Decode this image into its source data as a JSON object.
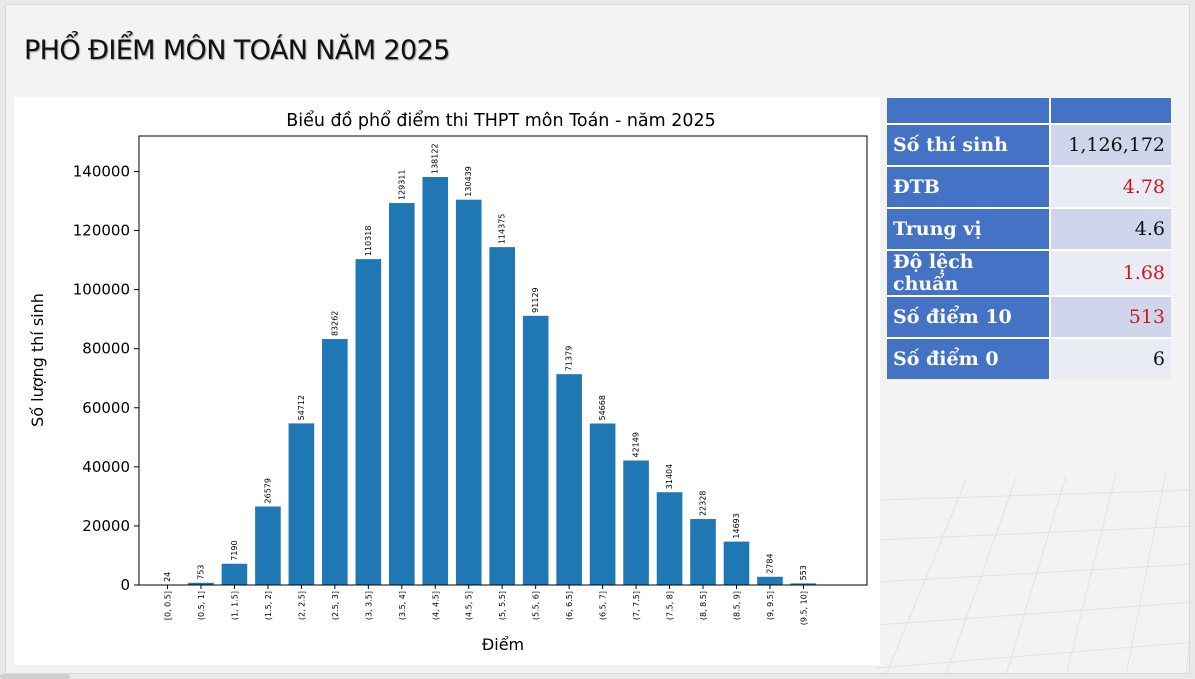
{
  "page": {
    "title": "PHỔ ĐIỂM MÔN TOÁN NĂM 2025"
  },
  "stats": {
    "header": [
      "",
      ""
    ],
    "rows": [
      {
        "label": "Số thí sinh",
        "value": "1,126,172",
        "highlight": false
      },
      {
        "label": "ĐTB",
        "value": "4.78",
        "highlight": true
      },
      {
        "label": "Trung vị",
        "value": "4.6",
        "highlight": false
      },
      {
        "label": "Độ lệch chuẩn",
        "value": "1.68",
        "highlight": true
      },
      {
        "label": "Số điểm 10",
        "value": "513",
        "highlight": true
      },
      {
        "label": "Số điểm 0",
        "value": "6",
        "highlight": false
      }
    ],
    "colors": {
      "header": "#4472c4",
      "highlight_text": "#d01818"
    }
  },
  "chart_data": {
    "type": "bar",
    "title": "Biểu đồ phổ điểm thi THPT môn Toán - năm 2025",
    "xlabel": "Điểm",
    "ylabel": "Số lượng thí sinh",
    "ylim": [
      0,
      152000
    ],
    "yticks": [
      0,
      20000,
      40000,
      60000,
      80000,
      100000,
      120000,
      140000
    ],
    "categories": [
      "[0, 0.5]",
      "(0.5, 1]",
      "(1, 1.5]",
      "(1.5, 2]",
      "(2, 2.5]",
      "(2.5, 3]",
      "(3, 3.5]",
      "(3.5, 4]",
      "(4, 4.5]",
      "(4.5, 5]",
      "(5, 5.5]",
      "(5.5, 6]",
      "(6, 6.5]",
      "(6.5, 7]",
      "(7, 7.5]",
      "(7.5, 8]",
      "(8, 8.5]",
      "(8.5, 9]",
      "(9, 9.5]",
      "(9.5, 10]"
    ],
    "values": [
      24,
      753,
      7190,
      26579,
      54712,
      83262,
      110318,
      129311,
      138122,
      130439,
      114375,
      91129,
      71379,
      54668,
      42149,
      31404,
      22328,
      14693,
      2784,
      553
    ],
    "bar_color": "#1f77b4",
    "grid": false,
    "legend": "none"
  }
}
